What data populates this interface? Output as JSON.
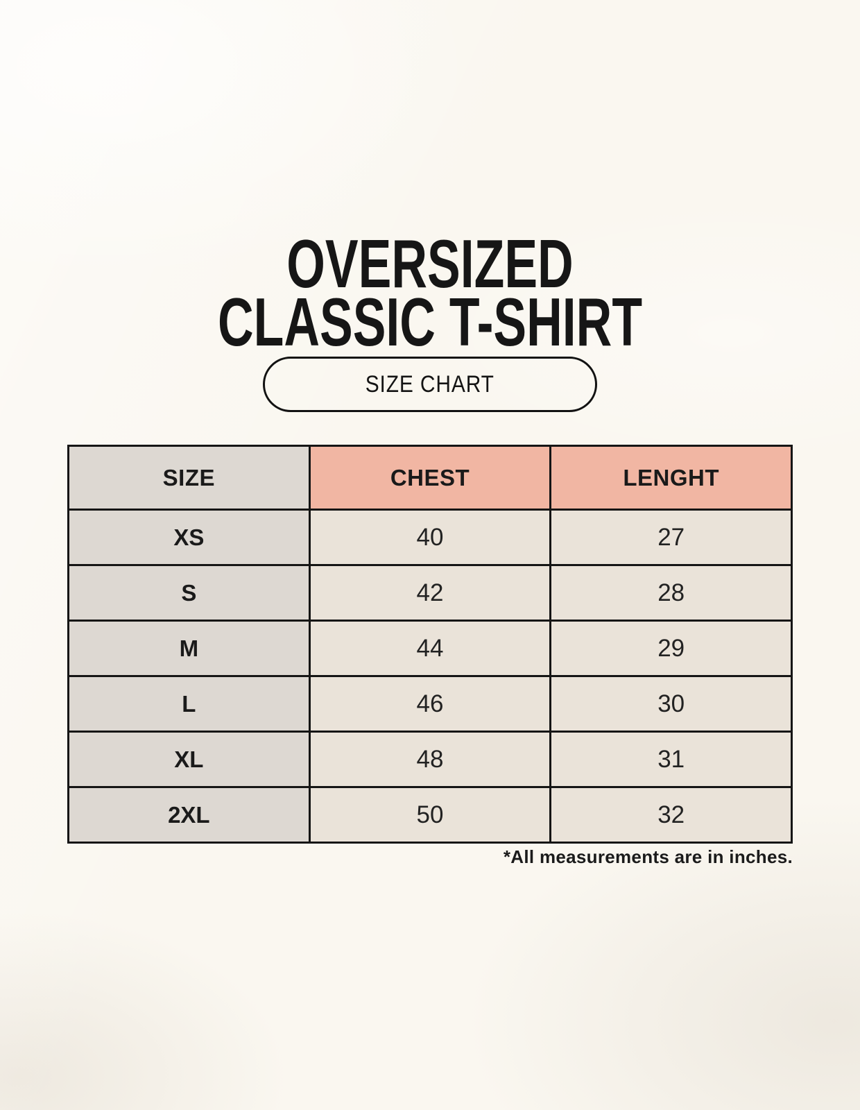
{
  "header": {
    "title_line1": "OVERSIZED",
    "title_line2": "CLASSIC T-SHIRT",
    "badge_label": "SIZE CHART"
  },
  "footnote": "*All measurements are in inches.",
  "chart_data": {
    "type": "table",
    "title": "OVERSIZED CLASSIC T-SHIRT",
    "subtitle": "SIZE CHART",
    "columns": [
      "SIZE",
      "CHEST",
      "LENGHT"
    ],
    "rows": [
      [
        "XS",
        "40",
        "27"
      ],
      [
        "S",
        "42",
        "28"
      ],
      [
        "M",
        "44",
        "29"
      ],
      [
        "L",
        "46",
        "30"
      ],
      [
        "XL",
        "48",
        "31"
      ],
      [
        "2XL",
        "50",
        "32"
      ]
    ],
    "units_note": "*All measurements are in inches."
  },
  "colors": {
    "page_background": "#faf7f0",
    "size_column_bg": "#ddd8d2",
    "accent_header_bg": "#f1b6a3",
    "value_cell_bg": "#eae3d9",
    "table_border": "#151515",
    "text": "#1b1b1b"
  }
}
